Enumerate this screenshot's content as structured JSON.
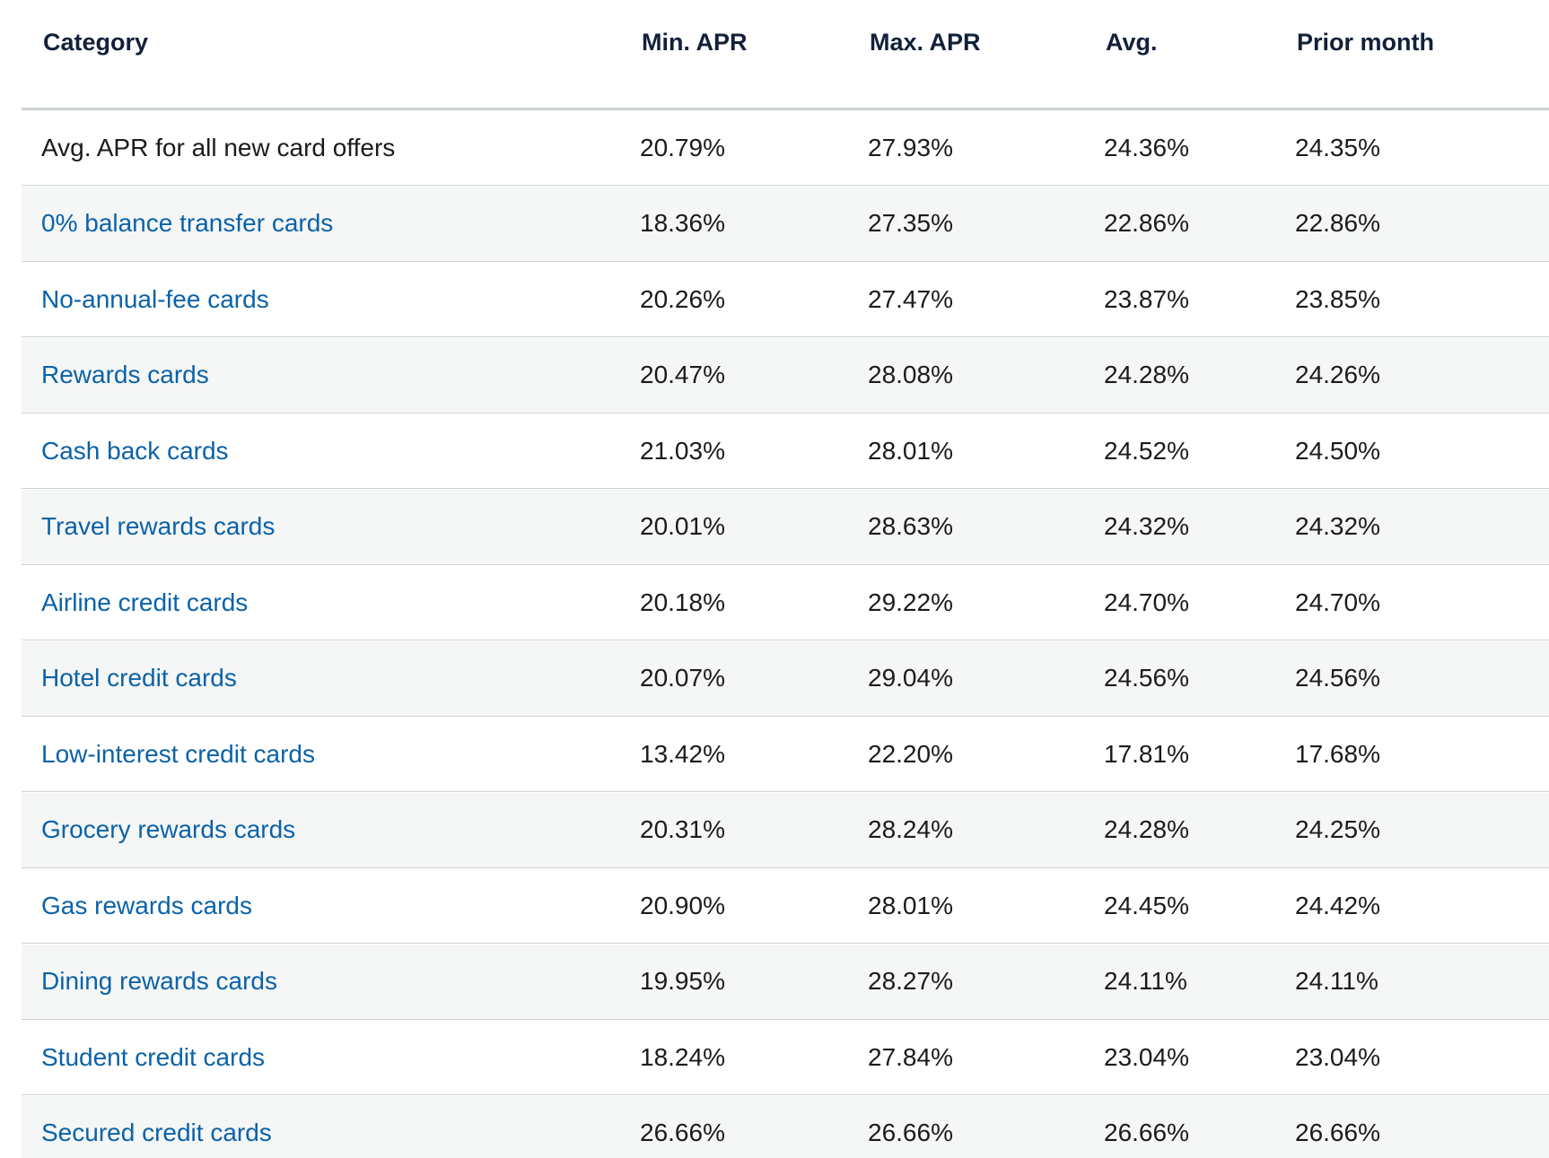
{
  "table": {
    "header": [
      "Category",
      "Min. APR",
      "Max. APR",
      "Avg.",
      "Prior month"
    ],
    "rows": [
      [
        "Avg. APR for all new card offers",
        "20.79%",
        "27.93%",
        "24.36%",
        "24.35%"
      ],
      [
        "0% balance transfer cards",
        "18.36%",
        "27.35%",
        "22.86%",
        "22.86%"
      ],
      [
        "No-annual-fee cards",
        "20.26%",
        "27.47%",
        "23.87%",
        "23.85%"
      ],
      [
        "Rewards cards",
        "20.47%",
        "28.08%",
        "24.28%",
        "24.26%"
      ],
      [
        "Cash back cards",
        "21.03%",
        "28.01%",
        "24.52%",
        "24.50%"
      ],
      [
        "Travel rewards cards",
        "20.01%",
        "28.63%",
        "24.32%",
        "24.32%"
      ],
      [
        "Airline credit cards",
        "20.18%",
        "29.22%",
        "24.70%",
        "24.70%"
      ],
      [
        "Hotel credit cards",
        "20.07%",
        "29.04%",
        "24.56%",
        "24.56%"
      ],
      [
        "Low-interest credit cards",
        "13.42%",
        "22.20%",
        "17.81%",
        "17.68%"
      ],
      [
        "Grocery rewards cards",
        "20.31%",
        "28.24%",
        "24.28%",
        "24.25%"
      ],
      [
        "Gas rewards cards",
        "20.90%",
        "28.01%",
        "24.45%",
        "24.42%"
      ],
      [
        "Dining rewards cards",
        "19.95%",
        "28.27%",
        "24.11%",
        "24.11%"
      ],
      [
        "Student credit cards",
        "18.24%",
        "27.84%",
        "23.04%",
        "23.04%"
      ],
      [
        "Secured credit cards",
        "26.66%",
        "26.66%",
        "26.66%",
        "26.66%"
      ]
    ]
  }
}
